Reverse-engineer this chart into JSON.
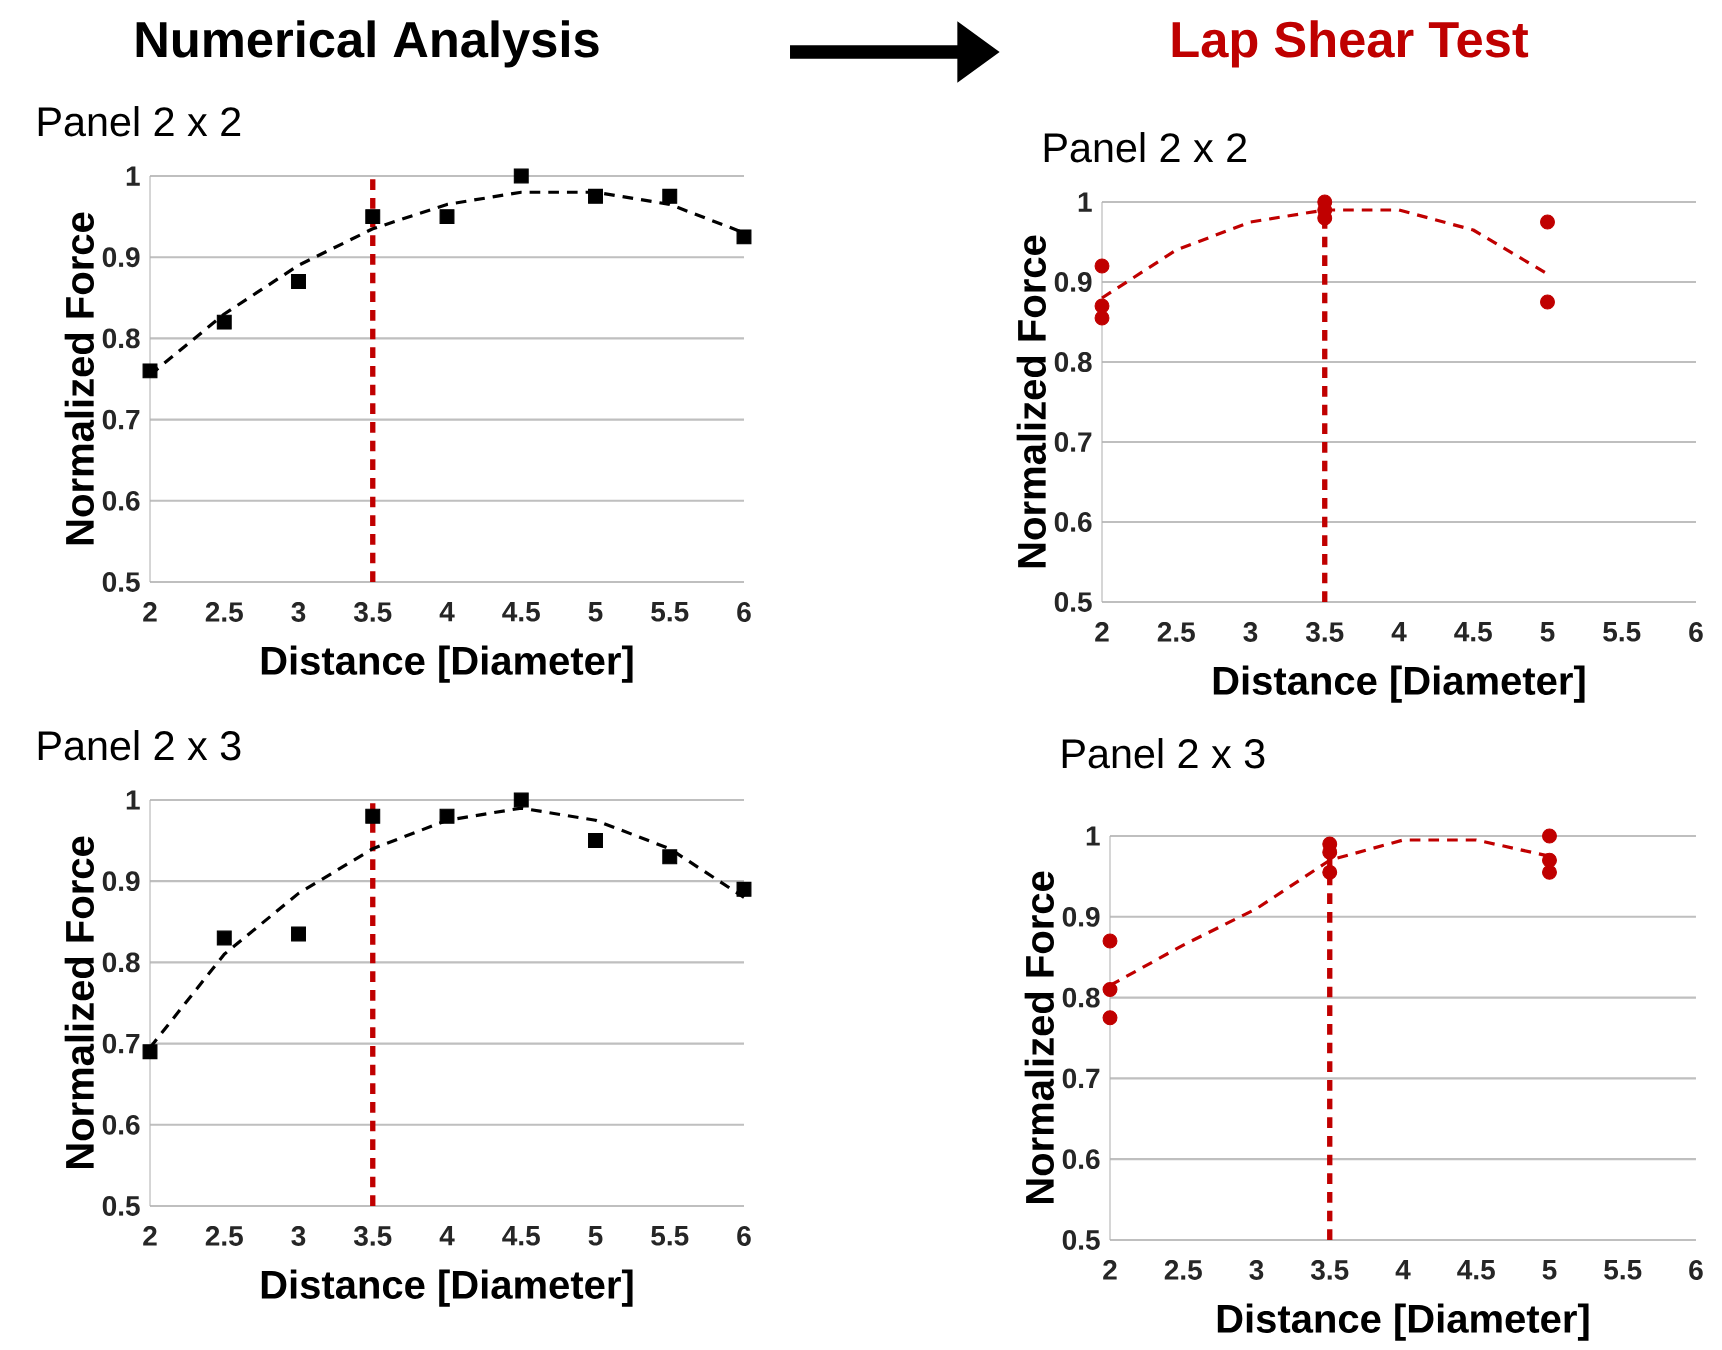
{
  "chart_data": [
    {
      "type": "scatter",
      "title": "Numerical Analysis",
      "subtitle": "Panel 2 x 2",
      "xlabel": "Distance [Diameter]",
      "ylabel": "Normalized Force",
      "xlim": [
        2,
        6
      ],
      "ylim": [
        0.5,
        1
      ],
      "xticks": [
        2,
        2.5,
        3,
        3.5,
        4,
        4.5,
        5,
        5.5,
        6
      ],
      "yticks": [
        0.5,
        0.6,
        0.7,
        0.8,
        0.9,
        1
      ],
      "grid": "y",
      "series": [
        {
          "type": "scatter",
          "marker": "square",
          "color": "#000000",
          "x": [
            2,
            2.5,
            3,
            3.5,
            4,
            4.5,
            5,
            5.5,
            6
          ],
          "values": [
            0.76,
            0.82,
            0.87,
            0.95,
            0.95,
            1.0,
            0.975,
            0.975,
            0.925
          ]
        },
        {
          "type": "line",
          "marker": "none",
          "line_style": "dashed",
          "color": "#000000",
          "x": [
            2,
            2.5,
            3,
            3.5,
            4,
            4.5,
            5,
            5.5,
            6
          ],
          "values": [
            0.755,
            0.83,
            0.89,
            0.935,
            0.965,
            0.98,
            0.98,
            0.965,
            0.93
          ]
        }
      ],
      "ref_lines": [
        {
          "axis": "x",
          "value": 3.5,
          "color": "#c00000",
          "line_style": "dashed"
        }
      ]
    },
    {
      "type": "scatter",
      "title": "Lap Shear Test",
      "subtitle": "Panel 2 x 2",
      "xlabel": "Distance [Diameter]",
      "ylabel": "Normalized Force",
      "xlim": [
        2,
        6
      ],
      "ylim": [
        0.5,
        1
      ],
      "xticks": [
        2,
        2.5,
        3,
        3.5,
        4,
        4.5,
        5,
        5.5,
        6
      ],
      "yticks": [
        0.5,
        0.6,
        0.7,
        0.8,
        0.9,
        1
      ],
      "grid": "y",
      "series": [
        {
          "type": "scatter",
          "marker": "circle",
          "color": "#c00000",
          "x": [
            2,
            2,
            2,
            3.5,
            3.5,
            3.5,
            5,
            5
          ],
          "values": [
            0.92,
            0.87,
            0.855,
            1.0,
            0.99,
            0.98,
            0.975,
            0.875
          ]
        },
        {
          "type": "line",
          "marker": "none",
          "line_style": "dashed",
          "color": "#c00000",
          "x": [
            2,
            2.5,
            3,
            3.5,
            4,
            4.5,
            5
          ],
          "values": [
            0.88,
            0.94,
            0.975,
            0.99,
            0.99,
            0.965,
            0.91
          ]
        }
      ],
      "ref_lines": [
        {
          "axis": "x",
          "value": 3.5,
          "color": "#c00000",
          "line_style": "dashed"
        }
      ]
    },
    {
      "type": "scatter",
      "title": "Panel 2 x 3",
      "xlabel": "Distance [Diameter]",
      "ylabel": "Normalized Force",
      "xlim": [
        2,
        6
      ],
      "ylim": [
        0.5,
        1
      ],
      "xticks": [
        2,
        2.5,
        3,
        3.5,
        4,
        4.5,
        5,
        5.5,
        6
      ],
      "yticks": [
        0.5,
        0.6,
        0.7,
        0.8,
        0.9,
        1
      ],
      "grid": "y",
      "series": [
        {
          "type": "scatter",
          "marker": "square",
          "color": "#000000",
          "x": [
            2,
            2.5,
            3,
            3.5,
            4,
            4.5,
            5,
            5.5,
            6
          ],
          "values": [
            0.69,
            0.83,
            0.835,
            0.98,
            0.98,
            1.0,
            0.95,
            0.93,
            0.89
          ]
        },
        {
          "type": "line",
          "marker": "none",
          "line_style": "dashed",
          "color": "#000000",
          "x": [
            2,
            2.5,
            3,
            3.5,
            4,
            4.5,
            5,
            5.5,
            6
          ],
          "values": [
            0.695,
            0.81,
            0.885,
            0.94,
            0.975,
            0.99,
            0.975,
            0.94,
            0.88
          ]
        }
      ],
      "ref_lines": [
        {
          "axis": "x",
          "value": 3.5,
          "color": "#c00000",
          "line_style": "dashed"
        }
      ]
    },
    {
      "type": "scatter",
      "title": "Panel 2 x 3",
      "xlabel": "Distance [Diameter]",
      "ylabel": "Normalized Force",
      "xlim": [
        2,
        6
      ],
      "ylim": [
        0.5,
        1
      ],
      "xticks": [
        2,
        2.5,
        3,
        3.5,
        4,
        4.5,
        5,
        5.5,
        6
      ],
      "yticks": [
        0.5,
        0.6,
        0.7,
        0.8,
        0.9,
        1
      ],
      "grid": "y",
      "series": [
        {
          "type": "scatter",
          "marker": "circle",
          "color": "#c00000",
          "x": [
            2,
            2,
            2,
            3.5,
            3.5,
            3.5,
            5,
            5,
            5
          ],
          "values": [
            0.87,
            0.81,
            0.775,
            0.99,
            0.98,
            0.955,
            1.0,
            0.97,
            0.955
          ]
        },
        {
          "type": "line",
          "marker": "none",
          "line_style": "dashed",
          "color": "#c00000",
          "x": [
            2,
            2.5,
            3,
            3.5,
            4,
            4.5,
            5
          ],
          "values": [
            0.815,
            0.865,
            0.91,
            0.97,
            0.995,
            0.995,
            0.975
          ]
        }
      ],
      "ref_lines": [
        {
          "axis": "x",
          "value": 3.5,
          "color": "#c00000",
          "line_style": "dashed"
        }
      ]
    }
  ]
}
